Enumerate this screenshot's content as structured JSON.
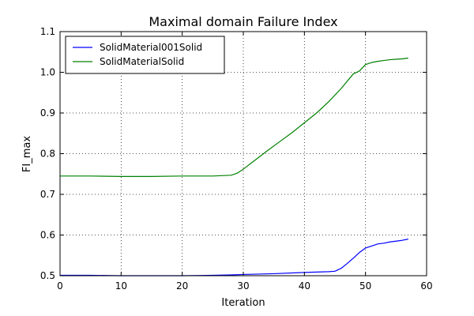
{
  "chart_data": {
    "type": "line",
    "title": "Maximal domain Failure Index",
    "xlabel": "Iteration",
    "ylabel": "FI_max",
    "xlim": [
      0,
      60
    ],
    "ylim": [
      0.5,
      1.1
    ],
    "xticks": [
      0,
      10,
      20,
      30,
      40,
      50,
      60
    ],
    "yticks": [
      0.5,
      0.6,
      0.7,
      0.8,
      0.9,
      1.0,
      1.1
    ],
    "xtick_labels": [
      "0",
      "10",
      "20",
      "30",
      "40",
      "50",
      "60"
    ],
    "ytick_labels": [
      "0.5",
      "0.6",
      "0.7",
      "0.8",
      "0.9",
      "1.0",
      "1.1"
    ],
    "grid": true,
    "legend_position": "top-left",
    "series": [
      {
        "name": "SolidMaterial001Solid",
        "color": "#0000ff",
        "x": [
          0,
          5,
          10,
          15,
          20,
          25,
          28,
          30,
          35,
          40,
          44,
          45,
          46,
          47,
          48,
          49,
          50,
          51,
          52,
          53,
          54,
          55,
          56,
          57
        ],
        "y": [
          0.501,
          0.501,
          0.5,
          0.5,
          0.5,
          0.501,
          0.502,
          0.503,
          0.505,
          0.508,
          0.51,
          0.511,
          0.518,
          0.53,
          0.543,
          0.557,
          0.568,
          0.573,
          0.578,
          0.58,
          0.583,
          0.585,
          0.587,
          0.59
        ]
      },
      {
        "name": "SolidMaterialSolid",
        "color": "#008000",
        "x": [
          0,
          5,
          10,
          15,
          20,
          25,
          28,
          29,
          30,
          32,
          34,
          36,
          38,
          40,
          42,
          44,
          46,
          48,
          49,
          50,
          51,
          52,
          53,
          54,
          55,
          56,
          57
        ],
        "y": [
          0.745,
          0.745,
          0.744,
          0.744,
          0.745,
          0.745,
          0.747,
          0.752,
          0.762,
          0.785,
          0.808,
          0.83,
          0.852,
          0.876,
          0.9,
          0.928,
          0.96,
          0.996,
          1.003,
          1.019,
          1.024,
          1.027,
          1.029,
          1.031,
          1.032,
          1.033,
          1.035
        ]
      }
    ]
  }
}
